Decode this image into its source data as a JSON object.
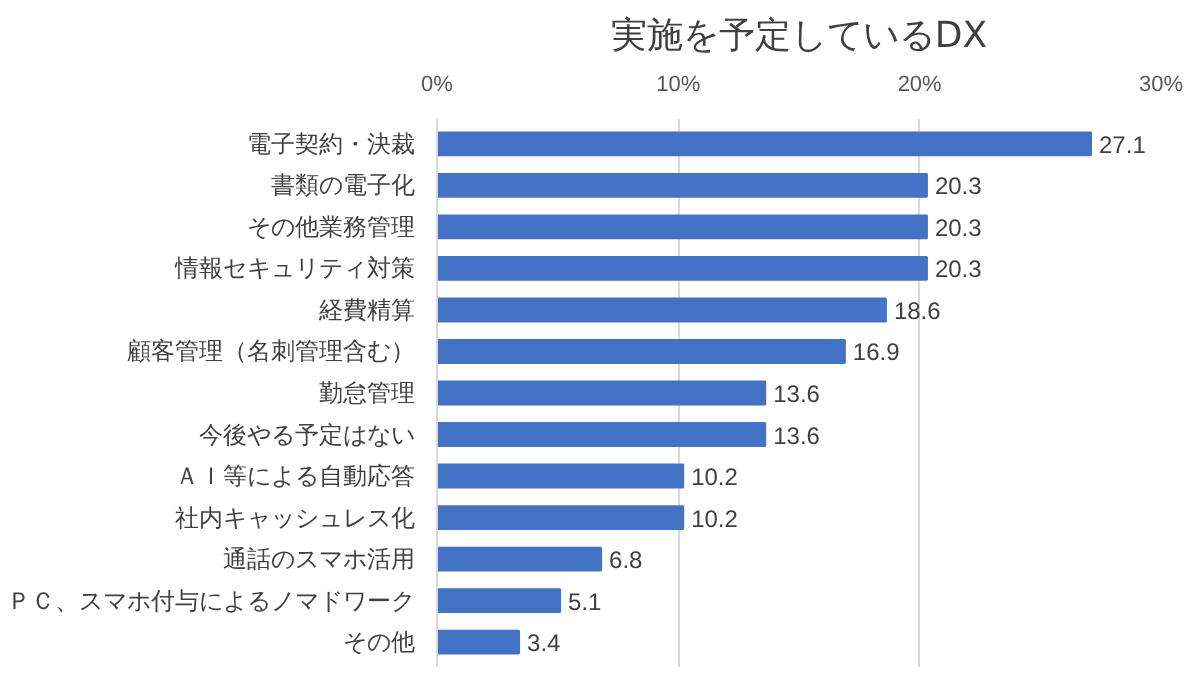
{
  "chart_data": {
    "type": "bar",
    "orientation": "horizontal",
    "title": "実施を予定しているDX",
    "categories": [
      "電子契約・決裁",
      "書類の電子化",
      "その他業務管理",
      "情報セキュリティ対策",
      "経費精算",
      "顧客管理（名刺管理含む）",
      "勤怠管理",
      "今後やる予定はない",
      "ＡＩ等による自動応答",
      "社内キャッシュレス化",
      "通話のスマホ活用",
      "ＰＣ、スマホ付与によるノマドワーク",
      "その他"
    ],
    "values": [
      27.1,
      20.3,
      20.3,
      20.3,
      18.6,
      16.9,
      13.6,
      13.6,
      10.2,
      10.2,
      6.8,
      5.1,
      3.4
    ],
    "color": "#4472c4",
    "xlim": [
      0,
      30
    ],
    "xticks": [
      {
        "value": 0,
        "label": "0%"
      },
      {
        "value": 10,
        "label": "10%"
      },
      {
        "value": 20,
        "label": "20%"
      },
      {
        "value": 30,
        "label": "30%"
      }
    ],
    "grid": "x",
    "data_labels": true
  }
}
